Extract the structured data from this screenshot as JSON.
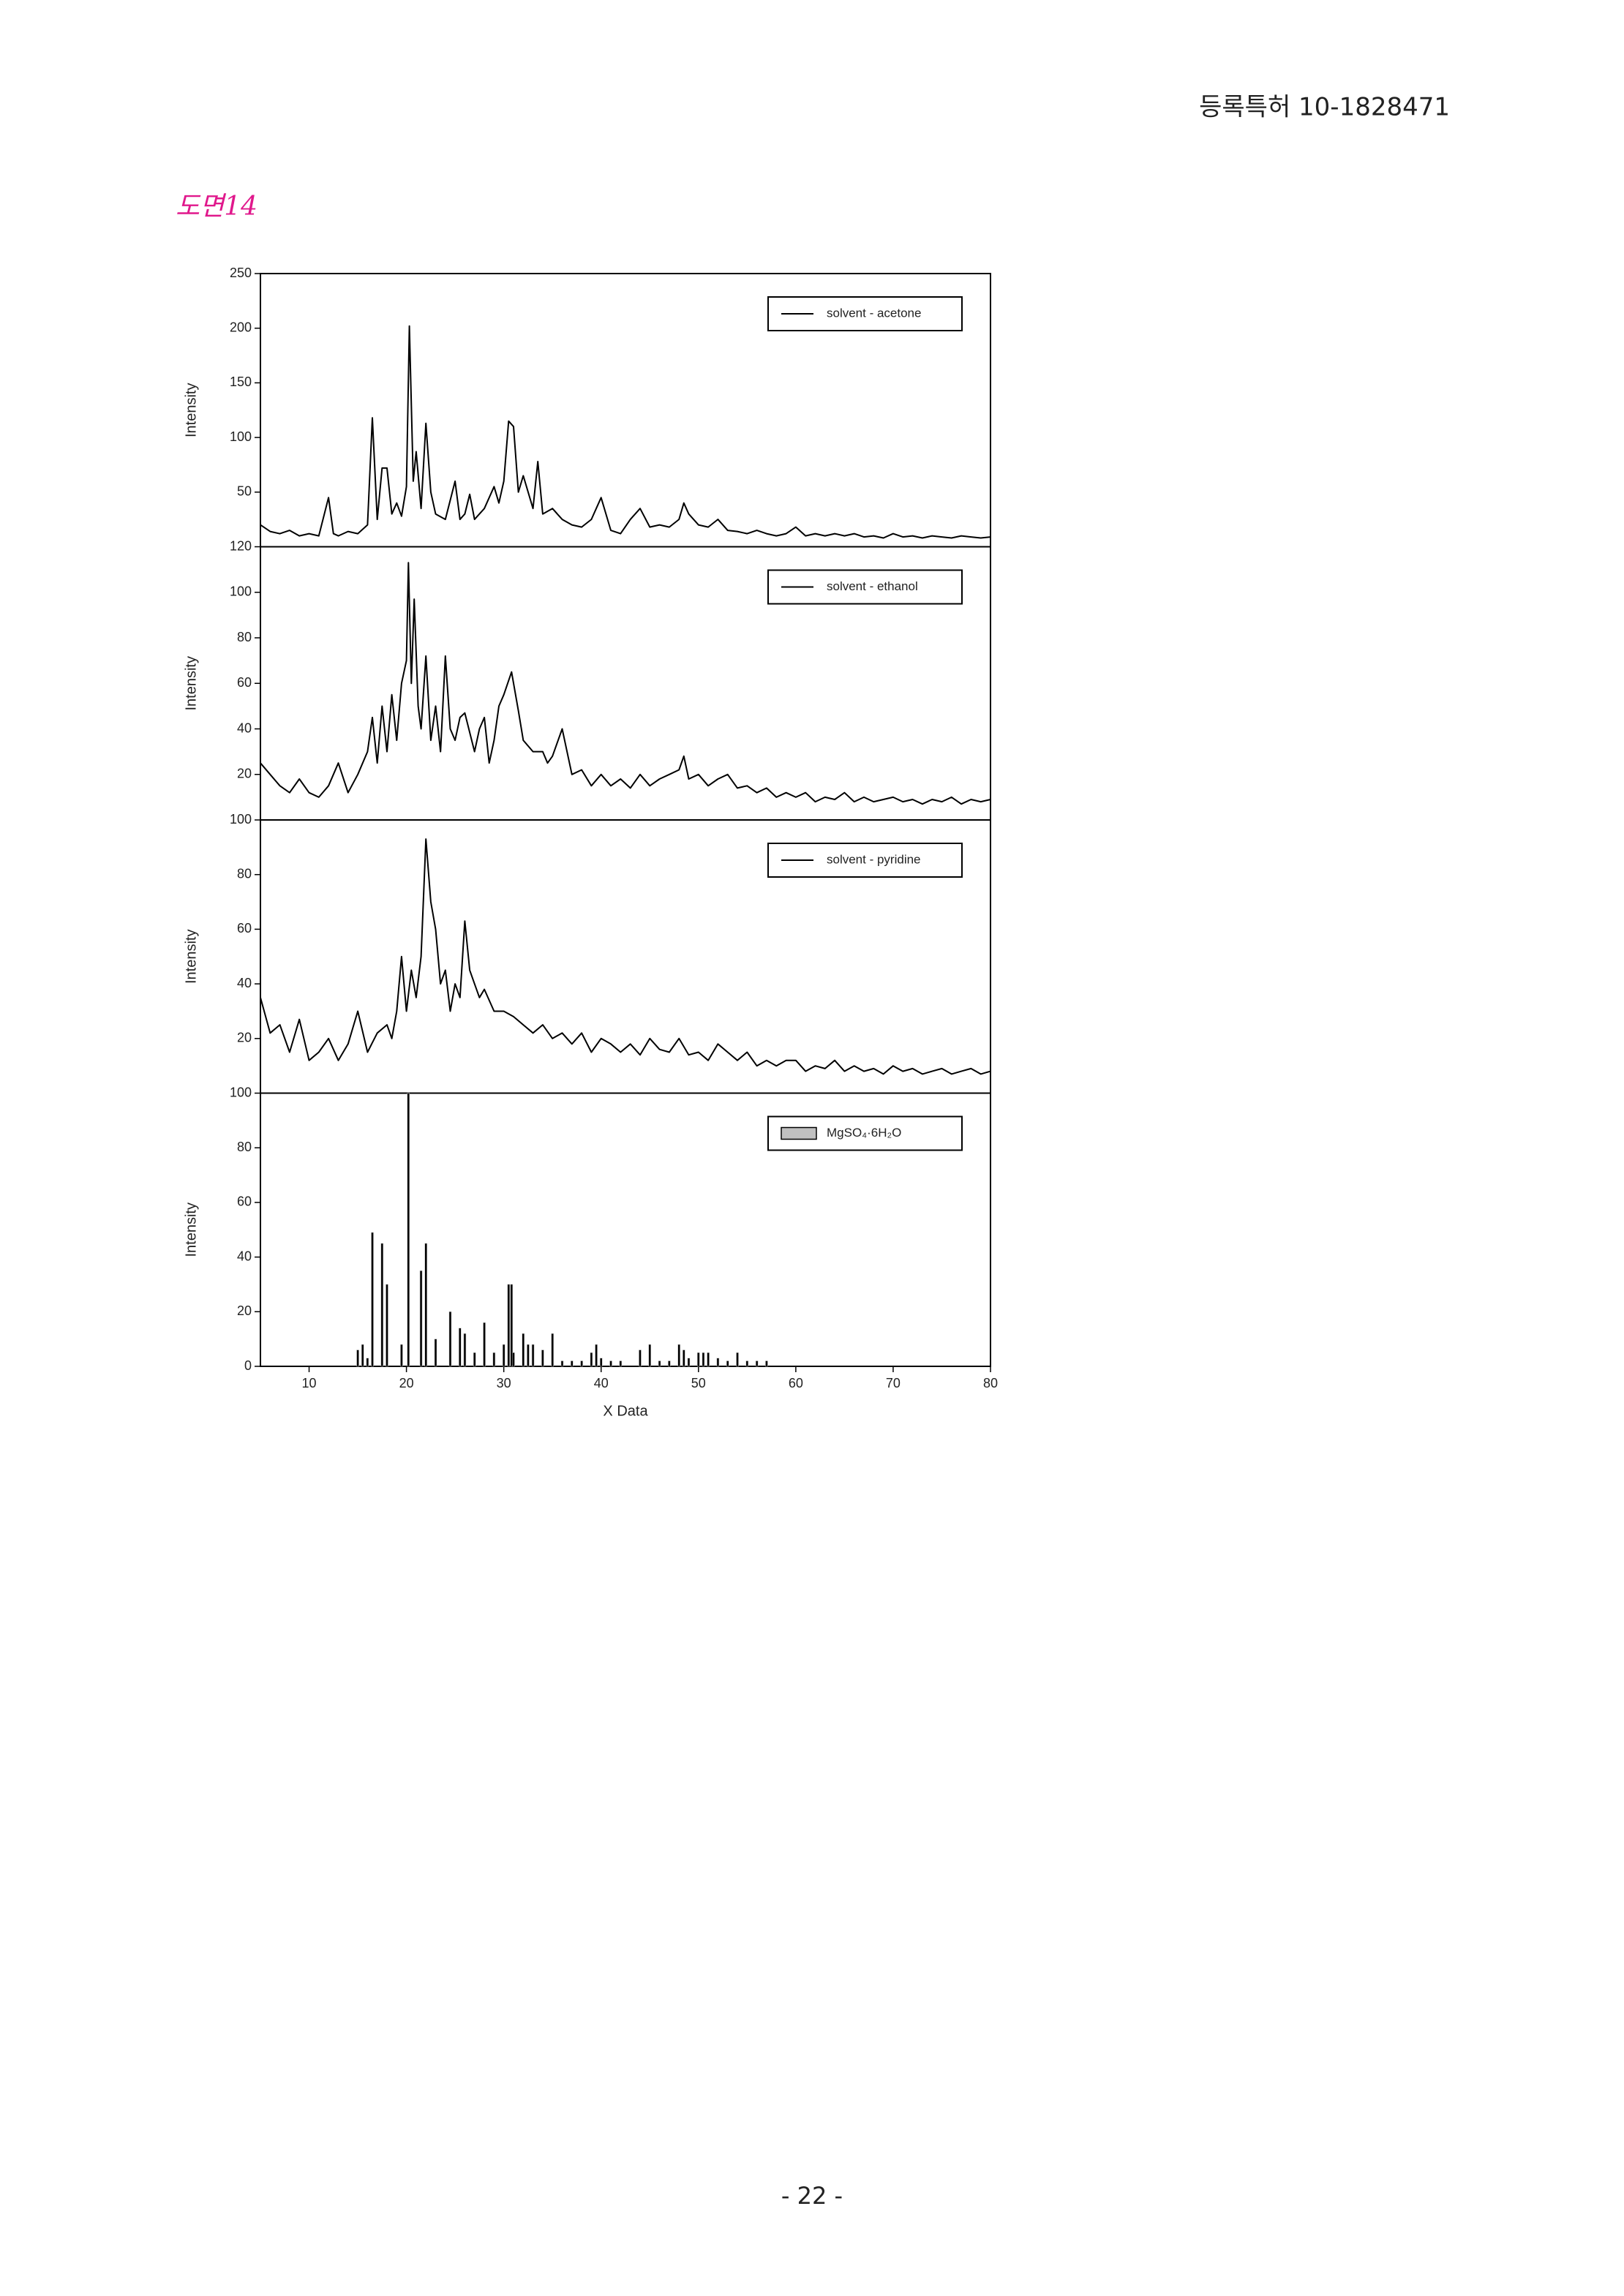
{
  "header": {
    "title": "등록특허 10-1828471"
  },
  "figure_label": "도면14",
  "page_number": "- 22 -",
  "chart_data": [
    {
      "type": "line",
      "y_label": "Intensity",
      "xlim": [
        5,
        80
      ],
      "ylim": [
        0,
        250
      ],
      "yticks": [
        50,
        100,
        150,
        200,
        250
      ],
      "legend": "upper right",
      "x": [
        5,
        6,
        7,
        8,
        9,
        10,
        11,
        12,
        12.5,
        13,
        14,
        15,
        16,
        16.5,
        17,
        17.5,
        18,
        18.5,
        19,
        19.5,
        20,
        20.3,
        20.7,
        21,
        21.5,
        22,
        22.5,
        23,
        24,
        25,
        25.5,
        26,
        26.5,
        27,
        28,
        29,
        29.5,
        30,
        30.5,
        31,
        31.5,
        32,
        33,
        33.5,
        34,
        35,
        36,
        37,
        38,
        39,
        40,
        41,
        42,
        43,
        44,
        45,
        46,
        47,
        48,
        48.5,
        49,
        50,
        51,
        52,
        53,
        54,
        55,
        56,
        57,
        58,
        59,
        60,
        61,
        62,
        63,
        64,
        65,
        66,
        67,
        68,
        69,
        70,
        71,
        72,
        73,
        74,
        75,
        76,
        77,
        78,
        79,
        80
      ],
      "series": [
        {
          "name": "solvent - acetone",
          "color": "#000000",
          "values": [
            20,
            14,
            12,
            15,
            10,
            12,
            10,
            45,
            12,
            10,
            14,
            12,
            20,
            118,
            25,
            72,
            72,
            30,
            40,
            28,
            55,
            202,
            60,
            87,
            35,
            113,
            50,
            30,
            25,
            60,
            25,
            30,
            48,
            25,
            35,
            55,
            40,
            60,
            115,
            110,
            50,
            65,
            35,
            78,
            30,
            35,
            25,
            20,
            18,
            25,
            45,
            15,
            12,
            25,
            35,
            18,
            20,
            18,
            25,
            40,
            30,
            20,
            18,
            25,
            15,
            14,
            12,
            15,
            12,
            10,
            12,
            18,
            10,
            12,
            10,
            12,
            10,
            12,
            9,
            10,
            8,
            12,
            9,
            10,
            8,
            10,
            9,
            8,
            10,
            9,
            8,
            9
          ]
        }
      ]
    },
    {
      "type": "line",
      "y_label": "Intensity",
      "xlim": [
        5,
        80
      ],
      "ylim": [
        0,
        120
      ],
      "yticks": [
        20,
        40,
        60,
        80,
        100,
        120
      ],
      "legend": "upper right",
      "x": [
        5,
        6,
        7,
        8,
        9,
        10,
        11,
        12,
        13,
        14,
        15,
        16,
        16.5,
        17,
        17.5,
        18,
        18.5,
        19,
        19.5,
        20,
        20.2,
        20.5,
        20.8,
        21.2,
        21.5,
        22,
        22.5,
        23,
        23.5,
        24,
        24.5,
        25,
        25.5,
        26,
        27,
        27.5,
        28,
        28.5,
        29,
        29.5,
        30,
        30.8,
        31.5,
        32,
        33,
        34,
        34.5,
        35,
        36,
        37,
        38,
        39,
        40,
        41,
        42,
        43,
        44,
        45,
        46,
        47,
        48,
        48.5,
        49,
        50,
        51,
        52,
        53,
        54,
        55,
        56,
        57,
        58,
        59,
        60,
        61,
        62,
        63,
        64,
        65,
        66,
        67,
        68,
        69,
        70,
        71,
        72,
        73,
        74,
        75,
        76,
        77,
        78,
        79,
        80
      ],
      "series": [
        {
          "name": "solvent - ethanol",
          "color": "#000000",
          "values": [
            25,
            20,
            15,
            12,
            18,
            12,
            10,
            15,
            25,
            12,
            20,
            30,
            45,
            25,
            50,
            30,
            55,
            35,
            60,
            70,
            113,
            60,
            97,
            50,
            40,
            72,
            35,
            50,
            30,
            72,
            40,
            35,
            45,
            47,
            30,
            40,
            45,
            25,
            35,
            50,
            55,
            65,
            48,
            35,
            30,
            30,
            25,
            28,
            40,
            20,
            22,
            15,
            20,
            15,
            18,
            14,
            20,
            15,
            18,
            20,
            22,
            28,
            18,
            20,
            15,
            18,
            20,
            14,
            15,
            12,
            14,
            10,
            12,
            10,
            12,
            8,
            10,
            9,
            12,
            8,
            10,
            8,
            9,
            10,
            8,
            9,
            7,
            9,
            8,
            10,
            7,
            9,
            8,
            9
          ]
        }
      ]
    },
    {
      "type": "line",
      "y_label": "Intensity",
      "xlim": [
        5,
        80
      ],
      "ylim": [
        0,
        100
      ],
      "yticks": [
        20,
        40,
        60,
        80,
        100
      ],
      "legend": "upper right",
      "x": [
        5,
        6,
        7,
        8,
        9,
        10,
        11,
        12,
        13,
        14,
        15,
        16,
        17,
        18,
        18.5,
        19,
        19.5,
        20,
        20.5,
        21,
        21.5,
        22,
        22.5,
        23,
        23.5,
        24,
        24.5,
        25,
        25.5,
        26,
        26.5,
        27,
        27.5,
        28,
        29,
        30,
        31,
        32,
        33,
        34,
        35,
        36,
        37,
        38,
        39,
        40,
        41,
        42,
        43,
        44,
        45,
        46,
        47,
        48,
        49,
        50,
        51,
        52,
        53,
        54,
        55,
        56,
        57,
        58,
        59,
        60,
        61,
        62,
        63,
        64,
        65,
        66,
        67,
        68,
        69,
        70,
        71,
        72,
        73,
        74,
        75,
        76,
        77,
        78,
        79,
        80
      ],
      "series": [
        {
          "name": "solvent - pyridine",
          "color": "#000000",
          "values": [
            35,
            22,
            25,
            15,
            27,
            12,
            15,
            20,
            12,
            18,
            30,
            15,
            22,
            25,
            20,
            30,
            50,
            30,
            45,
            35,
            50,
            93,
            70,
            60,
            40,
            45,
            30,
            40,
            35,
            63,
            45,
            40,
            35,
            38,
            30,
            30,
            28,
            25,
            22,
            25,
            20,
            22,
            18,
            22,
            15,
            20,
            18,
            15,
            18,
            14,
            20,
            16,
            15,
            20,
            14,
            15,
            12,
            18,
            15,
            12,
            15,
            10,
            12,
            10,
            12,
            12,
            8,
            10,
            9,
            12,
            8,
            10,
            8,
            9,
            7,
            10,
            8,
            9,
            7,
            8,
            9,
            7,
            8,
            9,
            7,
            8
          ]
        }
      ]
    },
    {
      "type": "bar",
      "y_label": "Intensity",
      "x_label": "X Data",
      "xlim": [
        5,
        80
      ],
      "ylim": [
        0,
        100
      ],
      "yticks": [
        0,
        20,
        40,
        60,
        80,
        100
      ],
      "xticks": [
        10,
        20,
        30,
        40,
        50,
        60,
        70,
        80
      ],
      "legend": "upper right",
      "x": [
        15,
        15.5,
        16,
        16.5,
        17.5,
        18,
        19.5,
        20.2,
        21.5,
        22,
        23,
        24.5,
        25.5,
        26,
        27,
        28,
        29,
        30,
        30.5,
        30.8,
        31,
        32,
        32.5,
        33,
        34,
        35,
        36,
        37,
        38,
        39,
        39.5,
        40,
        41,
        42,
        44,
        45,
        46,
        47,
        48,
        48.5,
        49,
        50,
        50.5,
        51,
        52,
        53,
        54,
        55,
        56,
        57
      ],
      "series": [
        {
          "name": "MgSO₄·6H₂O",
          "color": "#c0c0c0",
          "values": [
            6,
            8,
            3,
            49,
            45,
            30,
            8,
            100,
            35,
            45,
            10,
            20,
            14,
            12,
            5,
            16,
            5,
            8,
            30,
            30,
            5,
            12,
            8,
            8,
            6,
            12,
            2,
            2,
            2,
            5,
            8,
            3,
            2,
            2,
            6,
            8,
            2,
            2,
            8,
            6,
            3,
            5,
            5,
            5,
            3,
            2,
            5,
            2,
            2,
            2
          ]
        }
      ]
    }
  ]
}
